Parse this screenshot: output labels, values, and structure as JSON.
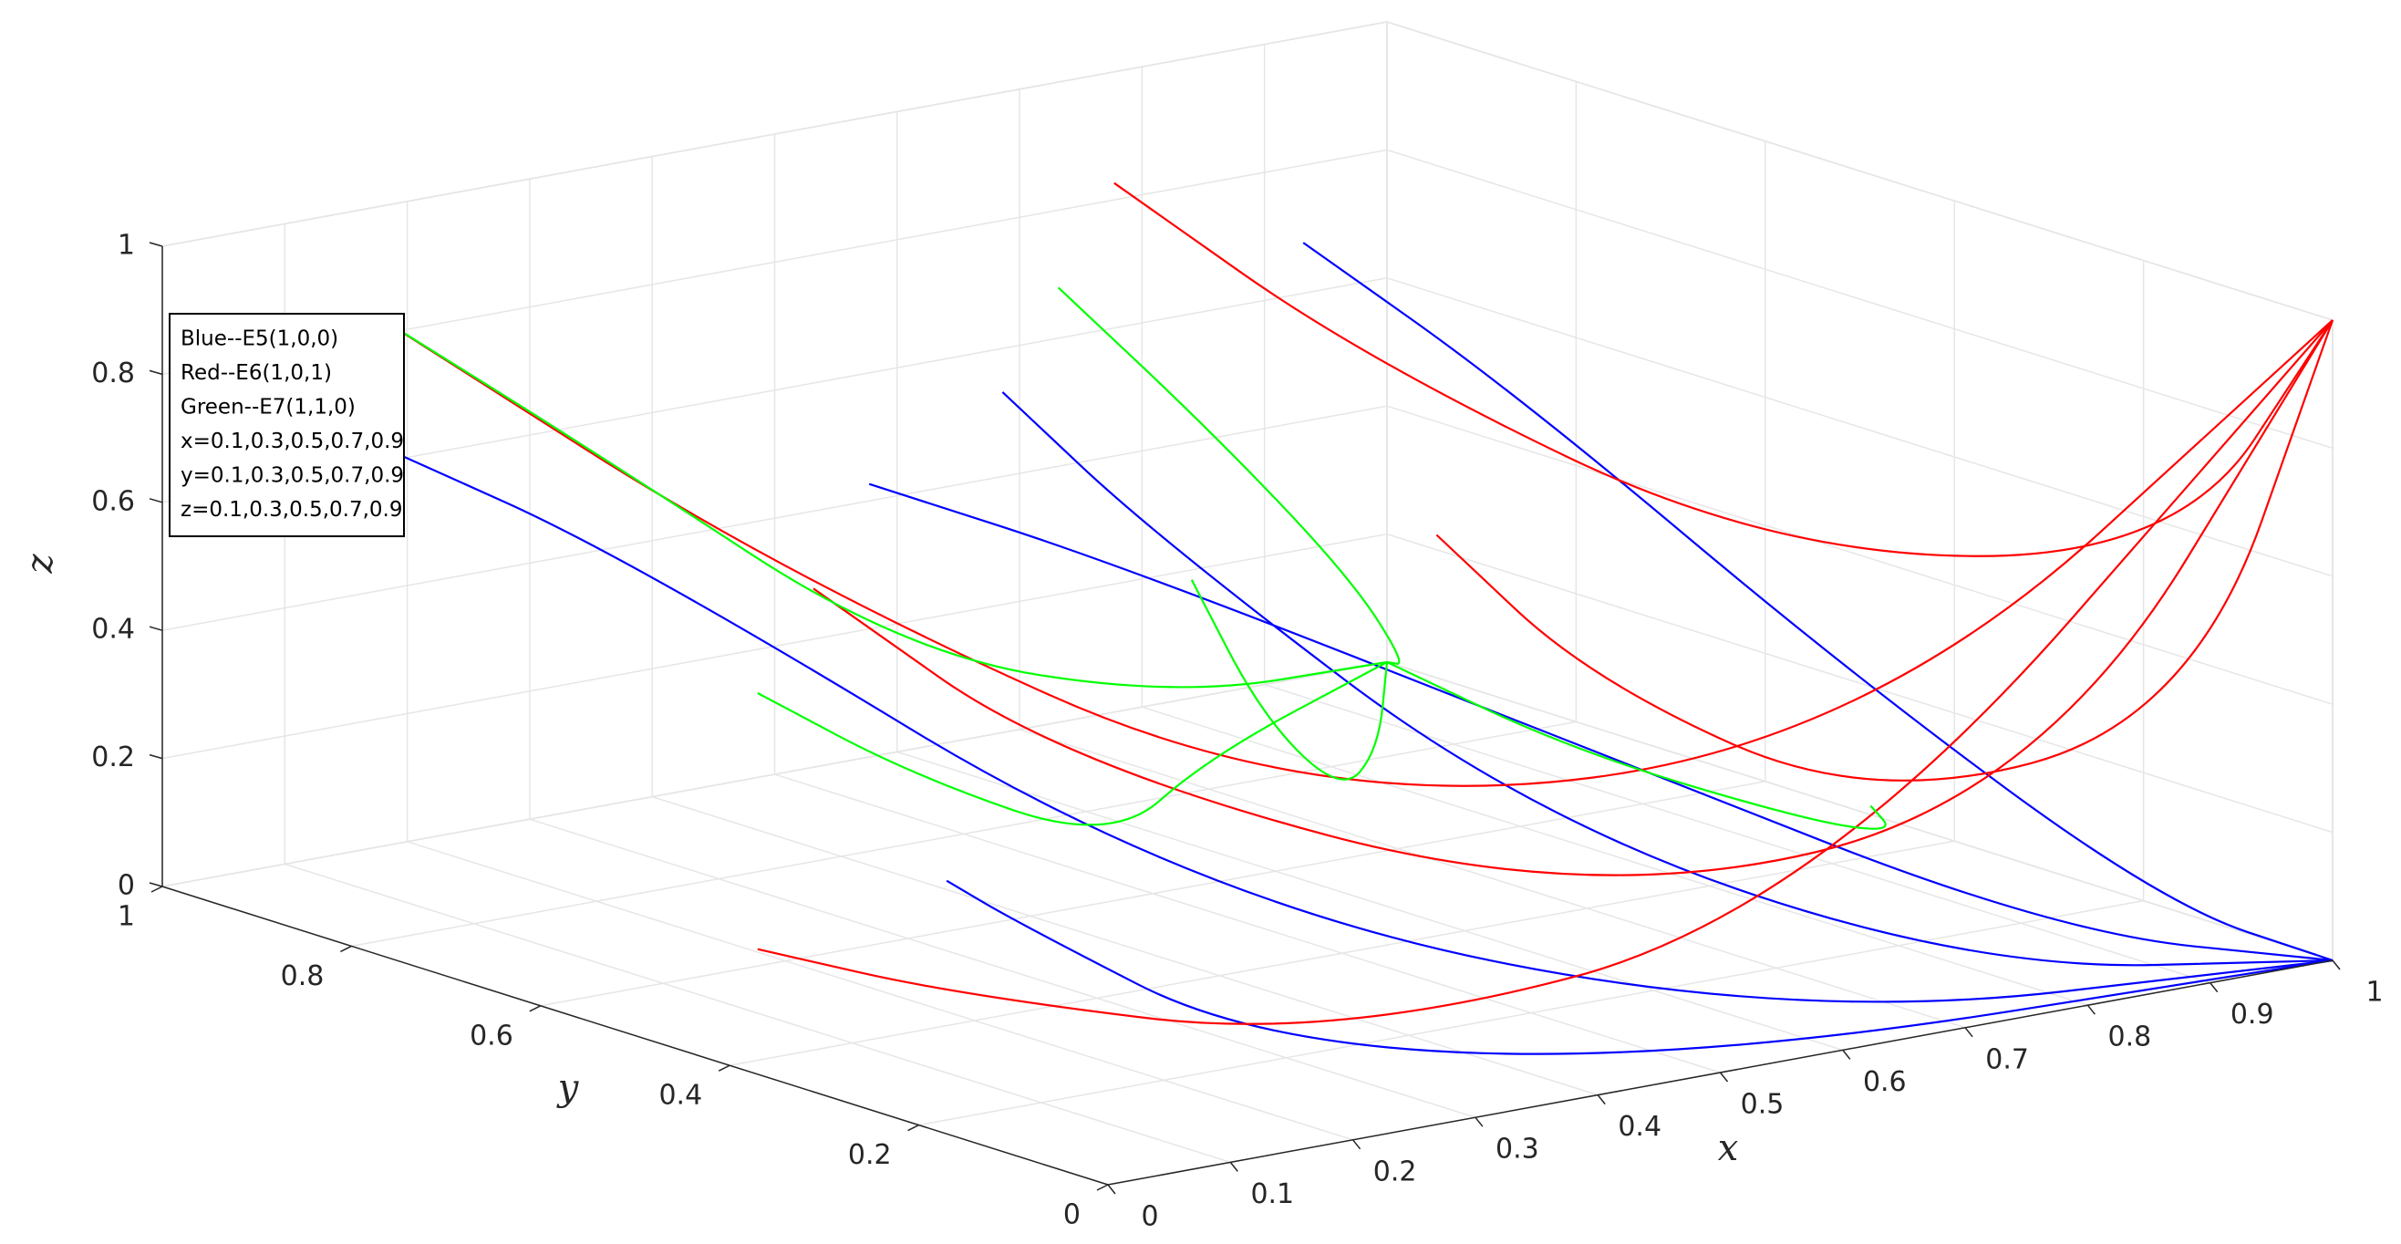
{
  "chart_data": {
    "type": "line3d",
    "xlabel": "x",
    "ylabel": "y",
    "zlabel": "z",
    "xlim": [
      0,
      1
    ],
    "ylim": [
      0,
      1
    ],
    "zlim": [
      0,
      1
    ],
    "xticks": [
      0,
      0.1,
      0.2,
      0.3,
      0.4,
      0.5,
      0.6,
      0.7,
      0.8,
      0.9,
      1
    ],
    "yticks": [
      0,
      0.2,
      0.4,
      0.6,
      0.8,
      1
    ],
    "zticks": [
      0,
      0.2,
      0.4,
      0.6,
      0.8,
      1
    ],
    "grid": true,
    "series": [
      {
        "name": "Blue--E5(1,0,0)",
        "color": "#0000ff",
        "trajectories": [
          {
            "x": [
              0.1,
              0.15,
              0.3,
              0.6,
              1
            ],
            "y": [
              0.9,
              0.7,
              0.3,
              0.05,
              0
            ],
            "z": [
              0.7,
              0.6,
              0.2,
              0.02,
              0
            ]
          },
          {
            "x": [
              0.3,
              0.35,
              0.5,
              0.75,
              1
            ],
            "y": [
              0.5,
              0.4,
              0.2,
              0.05,
              0
            ],
            "z": [
              0.9,
              0.7,
              0.3,
              0.05,
              0
            ]
          },
          {
            "x": [
              0.1,
              0.12,
              0.2,
              0.5,
              1
            ],
            "y": [
              0.3,
              0.25,
              0.1,
              0.02,
              0
            ],
            "z": [
              0.3,
              0.25,
              0.1,
              0.01,
              0
            ]
          },
          {
            "x": [
              0.5,
              0.55,
              0.7,
              0.85,
              1
            ],
            "y": [
              0.9,
              0.7,
              0.4,
              0.1,
              0
            ],
            "z": [
              0.5,
              0.45,
              0.25,
              0.05,
              0
            ]
          },
          {
            "x": [
              0.7,
              0.72,
              0.8,
              0.9,
              1
            ],
            "y": [
              0.7,
              0.5,
              0.25,
              0.05,
              0
            ],
            "z": [
              0.9,
              0.75,
              0.4,
              0.1,
              0
            ]
          }
        ]
      },
      {
        "name": "Red--E6(1,0,1)",
        "color": "#ff0000",
        "trajectories": [
          {
            "x": [
              0.1,
              0.2,
              0.4,
              0.7,
              1
            ],
            "y": [
              0.9,
              0.6,
              0.3,
              0.1,
              0
            ],
            "z": [
              0.9,
              0.6,
              0.3,
              0.4,
              1
            ]
          },
          {
            "x": [
              0.3,
              0.35,
              0.55,
              0.8,
              1
            ],
            "y": [
              0.7,
              0.5,
              0.2,
              0.05,
              0
            ],
            "z": [
              0.5,
              0.3,
              0.15,
              0.3,
              1
            ]
          },
          {
            "x": [
              0.5,
              0.55,
              0.7,
              0.9,
              1
            ],
            "y": [
              0.3,
              0.2,
              0.1,
              0.02,
              0
            ],
            "z": [
              0.7,
              0.5,
              0.3,
              0.4,
              1
            ]
          },
          {
            "x": [
              0.7,
              0.75,
              0.85,
              0.95,
              1
            ],
            "y": [
              0.9,
              0.7,
              0.4,
              0.1,
              0
            ],
            "z": [
              0.9,
              0.7,
              0.5,
              0.6,
              1
            ]
          },
          {
            "x": [
              0.1,
              0.15,
              0.3,
              0.6,
              1
            ],
            "y": [
              0.5,
              0.35,
              0.15,
              0.03,
              0
            ],
            "z": [
              0.1,
              0.08,
              0.05,
              0.2,
              1
            ]
          }
        ]
      },
      {
        "name": "Green--E7(1,1,0)",
        "color": "#00ff00",
        "trajectories": [
          {
            "x": [
              0.1,
              0.2,
              0.45,
              0.75,
              1
            ],
            "y": [
              0.9,
              0.8,
              0.8,
              0.9,
              1
            ],
            "z": [
              0.9,
              0.7,
              0.3,
              0.08,
              0
            ]
          },
          {
            "x": [
              0.3,
              0.32,
              0.5,
              0.8,
              1
            ],
            "y": [
              0.3,
              0.25,
              0.4,
              0.75,
              1
            ],
            "z": [
              0.7,
              0.5,
              0.25,
              0.05,
              0
            ]
          },
          {
            "x": [
              0.5,
              0.55,
              0.7,
              0.9,
              1
            ],
            "y": [
              0.7,
              0.6,
              0.65,
              0.85,
              1
            ],
            "z": [
              0.9,
              0.7,
              0.4,
              0.1,
              0
            ]
          },
          {
            "x": [
              0.1,
              0.15,
              0.35,
              0.7,
              1
            ],
            "y": [
              0.5,
              0.4,
              0.45,
              0.8,
              1
            ],
            "z": [
              0.5,
              0.4,
              0.2,
              0.05,
              0
            ]
          },
          {
            "x": [
              0.7,
              0.72,
              0.8,
              0.92,
              1
            ],
            "y": [
              0.1,
              0.1,
              0.3,
              0.7,
              1
            ],
            "z": [
              0.3,
              0.25,
              0.15,
              0.03,
              0
            ]
          }
        ]
      }
    ],
    "annotations": [
      "x=0.1,0.3,0.5,0.7,0.9",
      "y=0.1,0.3,0.5,0.7,0.9",
      "z=0.1,0.3,0.5,0.7,0.9"
    ]
  }
}
